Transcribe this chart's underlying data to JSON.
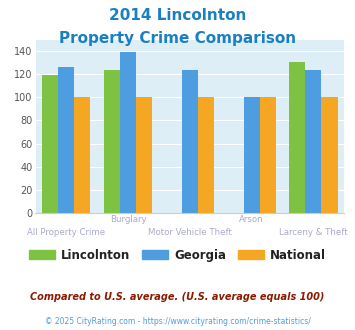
{
  "title_line1": "2014 Lincolnton",
  "title_line2": "Property Crime Comparison",
  "title_color": "#1a80c4",
  "label_top": [
    "",
    "Burglary",
    "",
    "Arson",
    ""
  ],
  "label_bottom": [
    "All Property Crime",
    "",
    "Motor Vehicle Theft",
    "",
    "Larceny & Theft"
  ],
  "lincolnton": [
    119,
    124,
    0,
    0,
    131
  ],
  "georgia": [
    126,
    139,
    124,
    100,
    124
  ],
  "national": [
    100,
    100,
    100,
    100,
    100
  ],
  "lincolnton_color": "#7dc242",
  "georgia_color": "#4d9de0",
  "national_color": "#f5a623",
  "ylim": [
    0,
    150
  ],
  "yticks": [
    0,
    20,
    40,
    60,
    80,
    100,
    120,
    140
  ],
  "bg_color": "#ddeef6",
  "legend_labels": [
    "Lincolnton",
    "Georgia",
    "National"
  ],
  "footnote1": "Compared to U.S. average. (U.S. average equals 100)",
  "footnote2": "© 2025 CityRating.com - https://www.cityrating.com/crime-statistics/",
  "footnote1_color": "#8b1a00",
  "footnote2_color": "#4d9de0",
  "label_color": "#aaaacc",
  "bar_width": 0.26,
  "n_groups": 5
}
